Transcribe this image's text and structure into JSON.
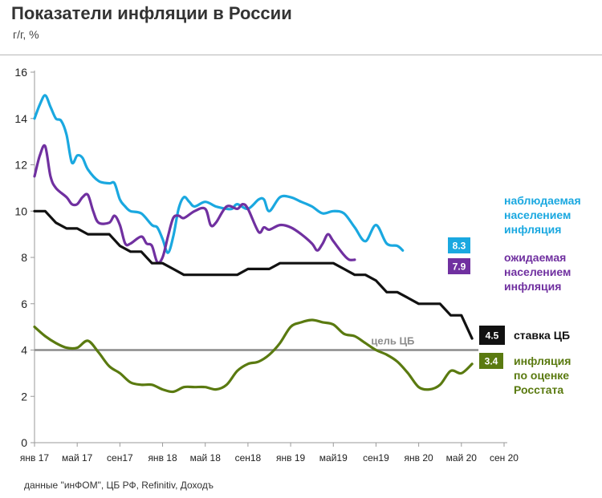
{
  "header": {
    "title": "Показатели инфляции в России",
    "subtitle": "г/г, %"
  },
  "source": "данные \"инФОМ\", ЦБ РФ, Refinitiv, Доходъ",
  "colors": {
    "observed": "#1aa8e0",
    "expected": "#7030a0",
    "key_rate": "#111111",
    "rosstat": "#5a7a10",
    "target": "#8c8c8c"
  },
  "chart_data": {
    "type": "line",
    "title": "Показатели инфляции в России",
    "ylabel": "г/г, %",
    "ylim": [
      0,
      16
    ],
    "xlim": [
      0,
      44
    ],
    "yticks": [
      0,
      2,
      4,
      6,
      8,
      10,
      12,
      14,
      16
    ],
    "xticks": [
      {
        "x": 0,
        "label": "янв 17"
      },
      {
        "x": 4,
        "label": "май 17"
      },
      {
        "x": 8,
        "label": "сен17"
      },
      {
        "x": 12,
        "label": "янв 18"
      },
      {
        "x": 16,
        "label": "май 18"
      },
      {
        "x": 20,
        "label": "сен18"
      },
      {
        "x": 24,
        "label": "янв 19"
      },
      {
        "x": 28,
        "label": "май19"
      },
      {
        "x": 32,
        "label": "сен19"
      },
      {
        "x": 36,
        "label": "янв 20"
      },
      {
        "x": 40,
        "label": "май 20"
      },
      {
        "x": 44,
        "label": "сен 20"
      }
    ],
    "target": {
      "value": 4,
      "label": "цель ЦБ"
    },
    "series": [
      {
        "key": "observed",
        "name": "наблюдаемая населением инфляция",
        "label_lines": [
          "наблюдаемая",
          "населением",
          "инфляция"
        ],
        "end_value": "8.3",
        "points": [
          [
            0,
            14
          ],
          [
            0.5,
            14.6
          ],
          [
            1,
            15
          ],
          [
            1.5,
            14.5
          ],
          [
            2,
            14
          ],
          [
            2.5,
            13.9
          ],
          [
            3,
            13.3
          ],
          [
            3.5,
            12.1
          ],
          [
            4,
            12.4
          ],
          [
            4.5,
            12.3
          ],
          [
            5,
            11.8
          ],
          [
            6,
            11.3
          ],
          [
            7,
            11.2
          ],
          [
            7.5,
            11.2
          ],
          [
            8,
            10.5
          ],
          [
            8.5,
            10.2
          ],
          [
            9,
            10
          ],
          [
            10,
            9.9
          ],
          [
            11,
            9.4
          ],
          [
            11.5,
            9.3
          ],
          [
            12,
            8.8
          ],
          [
            12.5,
            8.2
          ],
          [
            13,
            8.9
          ],
          [
            13.5,
            10.1
          ],
          [
            14,
            10.6
          ],
          [
            14.5,
            10.4
          ],
          [
            15,
            10.2
          ],
          [
            16,
            10.4
          ],
          [
            17,
            10.2
          ],
          [
            18,
            10.1
          ],
          [
            18.5,
            10.1
          ],
          [
            19,
            10.3
          ],
          [
            20,
            10.1
          ],
          [
            21,
            10.5
          ],
          [
            21.5,
            10.5
          ],
          [
            22,
            10
          ],
          [
            23,
            10.6
          ],
          [
            24,
            10.6
          ],
          [
            25,
            10.4
          ],
          [
            26,
            10.2
          ],
          [
            27,
            9.9
          ],
          [
            28,
            10
          ],
          [
            29,
            9.9
          ],
          [
            30,
            9.3
          ],
          [
            31,
            8.7
          ],
          [
            32,
            9.4
          ],
          [
            33,
            8.6
          ],
          [
            34,
            8.5
          ],
          [
            34.5,
            8.3
          ]
        ]
      },
      {
        "key": "expected",
        "name": "ожидаемая населением инфляция",
        "label_lines": [
          "ожидаемая",
          "населением",
          "инфляция"
        ],
        "end_value": "7.9",
        "points": [
          [
            0,
            11.5
          ],
          [
            0.5,
            12.4
          ],
          [
            1,
            12.8
          ],
          [
            1.5,
            11.5
          ],
          [
            2,
            11
          ],
          [
            3,
            10.6
          ],
          [
            3.5,
            10.3
          ],
          [
            4,
            10.3
          ],
          [
            4.5,
            10.6
          ],
          [
            5,
            10.7
          ],
          [
            5.5,
            10
          ],
          [
            6,
            9.5
          ],
          [
            7,
            9.5
          ],
          [
            7.5,
            9.8
          ],
          [
            8,
            9.4
          ],
          [
            8.5,
            8.6
          ],
          [
            9,
            8.6
          ],
          [
            10,
            8.9
          ],
          [
            10.5,
            8.6
          ],
          [
            11,
            8.5
          ],
          [
            11.5,
            7.8
          ],
          [
            12,
            8
          ],
          [
            12.5,
            8.9
          ],
          [
            13,
            9.7
          ],
          [
            13.5,
            9.8
          ],
          [
            14,
            9.7
          ],
          [
            15,
            10
          ],
          [
            16,
            10.1
          ],
          [
            16.5,
            9.4
          ],
          [
            17,
            9.5
          ],
          [
            18,
            10.2
          ],
          [
            19,
            10.1
          ],
          [
            19.5,
            10.3
          ],
          [
            20,
            10.1
          ],
          [
            21,
            9.1
          ],
          [
            21.5,
            9.3
          ],
          [
            22,
            9.2
          ],
          [
            23,
            9.4
          ],
          [
            24,
            9.3
          ],
          [
            25,
            9
          ],
          [
            26,
            8.6
          ],
          [
            26.5,
            8.3
          ],
          [
            27,
            8.6
          ],
          [
            27.5,
            9
          ],
          [
            28,
            8.7
          ],
          [
            29,
            8.1
          ],
          [
            29.5,
            7.9
          ],
          [
            30,
            7.9
          ]
        ]
      },
      {
        "key": "key_rate",
        "name": "ставка ЦБ",
        "label_lines": [
          "ставка ЦБ"
        ],
        "end_value": "4.5",
        "points": [
          [
            0,
            10
          ],
          [
            1,
            10
          ],
          [
            2,
            9.5
          ],
          [
            3,
            9.25
          ],
          [
            4,
            9.25
          ],
          [
            5,
            9
          ],
          [
            6,
            9
          ],
          [
            7,
            9
          ],
          [
            8,
            8.5
          ],
          [
            9,
            8.25
          ],
          [
            10,
            8.25
          ],
          [
            11,
            7.75
          ],
          [
            12,
            7.75
          ],
          [
            13,
            7.5
          ],
          [
            14,
            7.25
          ],
          [
            15,
            7.25
          ],
          [
            16,
            7.25
          ],
          [
            17,
            7.25
          ],
          [
            18,
            7.25
          ],
          [
            19,
            7.25
          ],
          [
            20,
            7.5
          ],
          [
            21,
            7.5
          ],
          [
            22,
            7.5
          ],
          [
            23,
            7.75
          ],
          [
            24,
            7.75
          ],
          [
            25,
            7.75
          ],
          [
            26,
            7.75
          ],
          [
            27,
            7.75
          ],
          [
            28,
            7.75
          ],
          [
            29,
            7.5
          ],
          [
            30,
            7.25
          ],
          [
            31,
            7.25
          ],
          [
            32,
            7
          ],
          [
            33,
            6.5
          ],
          [
            34,
            6.5
          ],
          [
            35,
            6.25
          ],
          [
            36,
            6
          ],
          [
            37,
            6
          ],
          [
            38,
            6
          ],
          [
            39,
            5.5
          ],
          [
            40,
            5.5
          ],
          [
            41,
            4.5
          ]
        ]
      },
      {
        "key": "rosstat",
        "name": "инфляция по оценке Росстата",
        "label_lines": [
          "инфляция",
          "по оценке",
          "Росстата"
        ],
        "end_value": "3.4",
        "points": [
          [
            0,
            5
          ],
          [
            1,
            4.6
          ],
          [
            2,
            4.3
          ],
          [
            3,
            4.1
          ],
          [
            4,
            4.1
          ],
          [
            5,
            4.4
          ],
          [
            6,
            3.9
          ],
          [
            7,
            3.3
          ],
          [
            8,
            3
          ],
          [
            9,
            2.6
          ],
          [
            10,
            2.5
          ],
          [
            11,
            2.5
          ],
          [
            12,
            2.3
          ],
          [
            13,
            2.2
          ],
          [
            14,
            2.4
          ],
          [
            15,
            2.4
          ],
          [
            16,
            2.4
          ],
          [
            17,
            2.3
          ],
          [
            18,
            2.5
          ],
          [
            19,
            3.1
          ],
          [
            20,
            3.4
          ],
          [
            21,
            3.5
          ],
          [
            22,
            3.8
          ],
          [
            23,
            4.3
          ],
          [
            24,
            5
          ],
          [
            25,
            5.2
          ],
          [
            26,
            5.3
          ],
          [
            27,
            5.2
          ],
          [
            28,
            5.1
          ],
          [
            29,
            4.7
          ],
          [
            30,
            4.6
          ],
          [
            31,
            4.3
          ],
          [
            32,
            4
          ],
          [
            33,
            3.8
          ],
          [
            34,
            3.5
          ],
          [
            35,
            3
          ],
          [
            36,
            2.4
          ],
          [
            37,
            2.3
          ],
          [
            38,
            2.5
          ],
          [
            39,
            3.1
          ],
          [
            40,
            3
          ],
          [
            41,
            3.4
          ]
        ]
      }
    ]
  }
}
